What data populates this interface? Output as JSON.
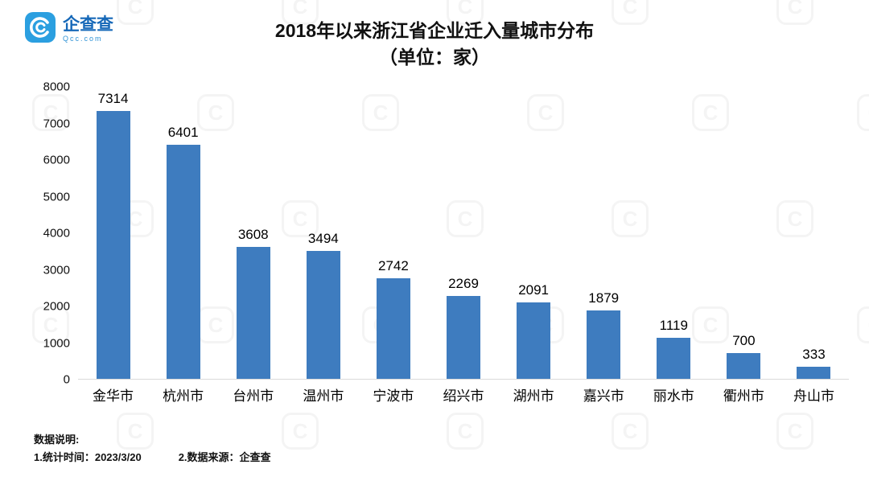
{
  "logo": {
    "name": "企查查",
    "sub": "Qcc.com"
  },
  "title": {
    "line1": "2018年以来浙江省企业迁入量城市分布",
    "line2": "（单位：家）"
  },
  "chart_data": {
    "type": "bar",
    "title": "2018年以来浙江省企业迁入量城市分布（单位：家）",
    "categories": [
      "金华市",
      "杭州市",
      "台州市",
      "温州市",
      "宁波市",
      "绍兴市",
      "湖州市",
      "嘉兴市",
      "丽水市",
      "衢州市",
      "舟山市"
    ],
    "values": [
      7314,
      6401,
      3608,
      3494,
      2742,
      2269,
      2091,
      1879,
      1119,
      700,
      333
    ],
    "xlabel": "",
    "ylabel": "",
    "ylim": [
      0,
      8000
    ],
    "ytick_interval": 1000,
    "grid": false,
    "legend": "none",
    "bar_color": "#3e7cbf"
  },
  "footer": {
    "label": "数据说明:",
    "note1": "1.统计时间：2023/3/20",
    "note2": "2.数据来源：企查查"
  },
  "watermark_glyph": "C"
}
